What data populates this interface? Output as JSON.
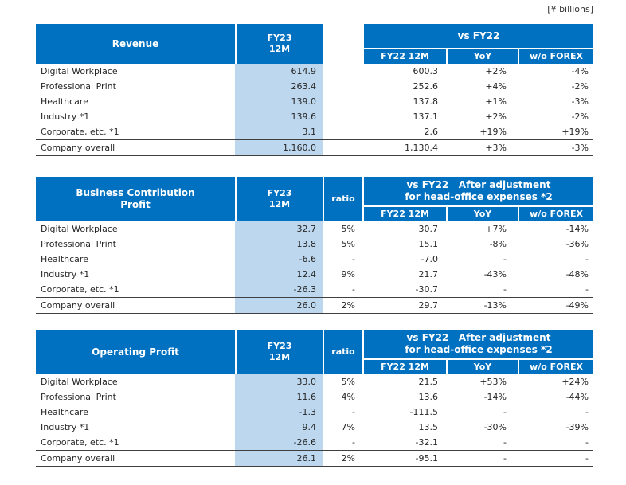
{
  "page": {
    "units": "[¥ billions]"
  },
  "colors": {
    "header_blue": "#0070C0",
    "fy23_column_fill": "#BDD7EE"
  },
  "tables": [
    {
      "title_line1": "Revenue",
      "title_line2": "",
      "fy23_line1": "FY23",
      "fy23_line2": "12M",
      "ratio_label": "",
      "vs_line1": "vs FY22",
      "vs_line2": "",
      "sub": [
        "FY22 12M",
        "YoY",
        "w/o FOREX"
      ],
      "rows": [
        {
          "label": "Digital Workplace",
          "fy23": "614.9",
          "ratio": "",
          "fy22": "600.3",
          "yoy": "+2%",
          "forex": "-4%"
        },
        {
          "label": "Professional Print",
          "fy23": "263.4",
          "ratio": "",
          "fy22": "252.6",
          "yoy": "+4%",
          "forex": "-2%"
        },
        {
          "label": "Healthcare",
          "fy23": "139.0",
          "ratio": "",
          "fy22": "137.8",
          "yoy": "+1%",
          "forex": "-3%"
        },
        {
          "label": "Industry *1",
          "fy23": "139.6",
          "ratio": "",
          "fy22": "137.1",
          "yoy": "+2%",
          "forex": "-2%"
        },
        {
          "label": "Corporate, etc. *1",
          "fy23": "3.1",
          "ratio": "",
          "fy22": "2.6",
          "yoy": "+19%",
          "forex": "+19%"
        },
        {
          "label": "Company overall",
          "fy23": "1,160.0",
          "ratio": "",
          "fy22": "1,130.4",
          "yoy": "+3%",
          "forex": "-3%"
        }
      ]
    },
    {
      "title_line1": "Business Contribution",
      "title_line2": "Profit",
      "fy23_line1": "FY23",
      "fy23_line2": "12M",
      "ratio_label": "ratio",
      "vs_line1": "vs FY22   After adjustment",
      "vs_line2": "for head-office expenses *2",
      "sub": [
        "FY22 12M",
        "YoY",
        "w/o FOREX"
      ],
      "rows": [
        {
          "label": "Digital Workplace",
          "fy23": "32.7",
          "ratio": "5%",
          "fy22": "30.7",
          "yoy": "+7%",
          "forex": "-14%"
        },
        {
          "label": "Professional Print",
          "fy23": "13.8",
          "ratio": "5%",
          "fy22": "15.1",
          "yoy": "-8%",
          "forex": "-36%"
        },
        {
          "label": "Healthcare",
          "fy23": "-6.6",
          "ratio": "-",
          "fy22": "-7.0",
          "yoy": "-",
          "forex": "-"
        },
        {
          "label": "Industry *1",
          "fy23": "12.4",
          "ratio": "9%",
          "fy22": "21.7",
          "yoy": "-43%",
          "forex": "-48%"
        },
        {
          "label": "Corporate, etc. *1",
          "fy23": "-26.3",
          "ratio": "-",
          "fy22": "-30.7",
          "yoy": "-",
          "forex": "-"
        },
        {
          "label": "Company overall",
          "fy23": "26.0",
          "ratio": "2%",
          "fy22": "29.7",
          "yoy": "-13%",
          "forex": "-49%"
        }
      ]
    },
    {
      "title_line1": "Operating Profit",
      "title_line2": "",
      "fy23_line1": "FY23",
      "fy23_line2": "12M",
      "ratio_label": "ratio",
      "vs_line1": "vs FY22   After adjustment",
      "vs_line2": "for head-office expenses *2",
      "sub": [
        "FY22 12M",
        "YoY",
        "w/o FOREX"
      ],
      "rows": [
        {
          "label": "Digital Workplace",
          "fy23": "33.0",
          "ratio": "5%",
          "fy22": "21.5",
          "yoy": "+53%",
          "forex": "+24%"
        },
        {
          "label": "Professional Print",
          "fy23": "11.6",
          "ratio": "4%",
          "fy22": "13.6",
          "yoy": "-14%",
          "forex": "-44%"
        },
        {
          "label": "Healthcare",
          "fy23": "-1.3",
          "ratio": "-",
          "fy22": "-111.5",
          "yoy": "-",
          "forex": "-"
        },
        {
          "label": "Industry *1",
          "fy23": "9.4",
          "ratio": "7%",
          "fy22": "13.5",
          "yoy": "-30%",
          "forex": "-39%"
        },
        {
          "label": "Corporate, etc. *1",
          "fy23": "-26.6",
          "ratio": "-",
          "fy22": "-32.1",
          "yoy": "-",
          "forex": "-"
        },
        {
          "label": "Company overall",
          "fy23": "26.1",
          "ratio": "2%",
          "fy22": "-95.1",
          "yoy": "-",
          "forex": "-"
        }
      ]
    }
  ]
}
